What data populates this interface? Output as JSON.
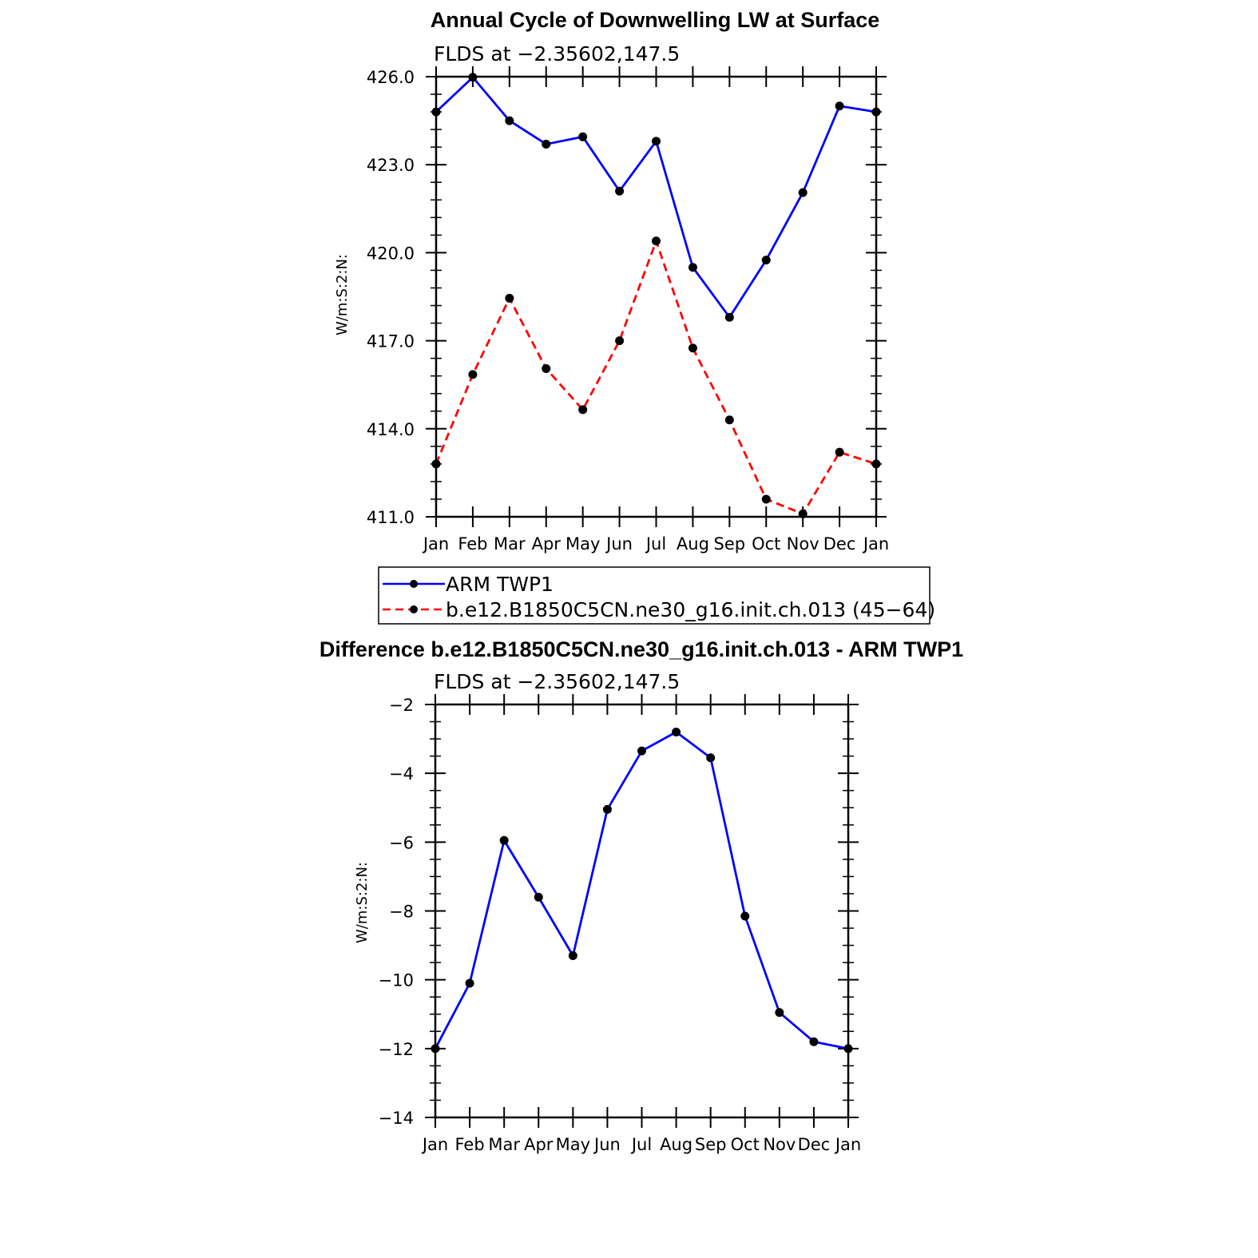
{
  "chart_data": [
    {
      "type": "line",
      "title": "Annual Cycle of Downwelling LW at Surface",
      "subtitle": "FLDS at −2.35602,147.5",
      "ylabel": "W/m:S:2:N:",
      "xlabel": "",
      "categories": [
        "Jan",
        "Feb",
        "Mar",
        "Apr",
        "May",
        "Jun",
        "Jul",
        "Aug",
        "Sep",
        "Oct",
        "Nov",
        "Dec",
        "Jan"
      ],
      "ylim": [
        411.0,
        426.0
      ],
      "yticks": [
        "411.0",
        "414.0",
        "417.0",
        "420.0",
        "423.0",
        "426.0"
      ],
      "grid": false,
      "legend": "below",
      "series": [
        {
          "name": "ARM TWP1",
          "color": "#0000ff",
          "style": "solid",
          "values": [
            424.8,
            425.98,
            424.5,
            423.7,
            423.95,
            422.1,
            423.8,
            419.5,
            417.8,
            419.75,
            422.05,
            425.0,
            424.8
          ]
        },
        {
          "name": "b.e12.B1850C5CN.ne30_g16.init.ch.013 (45−64)",
          "color": "#ff0000",
          "style": "dashed",
          "values": [
            412.8,
            415.85,
            418.45,
            416.05,
            414.65,
            417.0,
            420.4,
            416.75,
            414.3,
            411.6,
            411.1,
            413.2,
            412.8
          ]
        }
      ]
    },
    {
      "type": "line",
      "title": "Difference b.e12.B1850C5CN.ne30_g16.init.ch.013 - ARM TWP1",
      "subtitle": "FLDS at −2.35602,147.5",
      "ylabel": "W/m:S:2:N:",
      "xlabel": "",
      "categories": [
        "Jan",
        "Feb",
        "Mar",
        "Apr",
        "May",
        "Jun",
        "Jul",
        "Aug",
        "Sep",
        "Oct",
        "Nov",
        "Dec",
        "Jan"
      ],
      "ylim": [
        -14,
        -2
      ],
      "yticks": [
        "−14",
        "−12",
        "−10",
        "−8",
        "−6",
        "−4",
        "−2"
      ],
      "grid": false,
      "series": [
        {
          "color": "#0000ff",
          "style": "solid",
          "values": [
            -12.0,
            -10.1,
            -5.95,
            -7.6,
            -9.3,
            -5.05,
            -3.35,
            -2.8,
            -3.55,
            -8.15,
            -10.95,
            -11.8,
            -12.0
          ]
        }
      ]
    }
  ]
}
